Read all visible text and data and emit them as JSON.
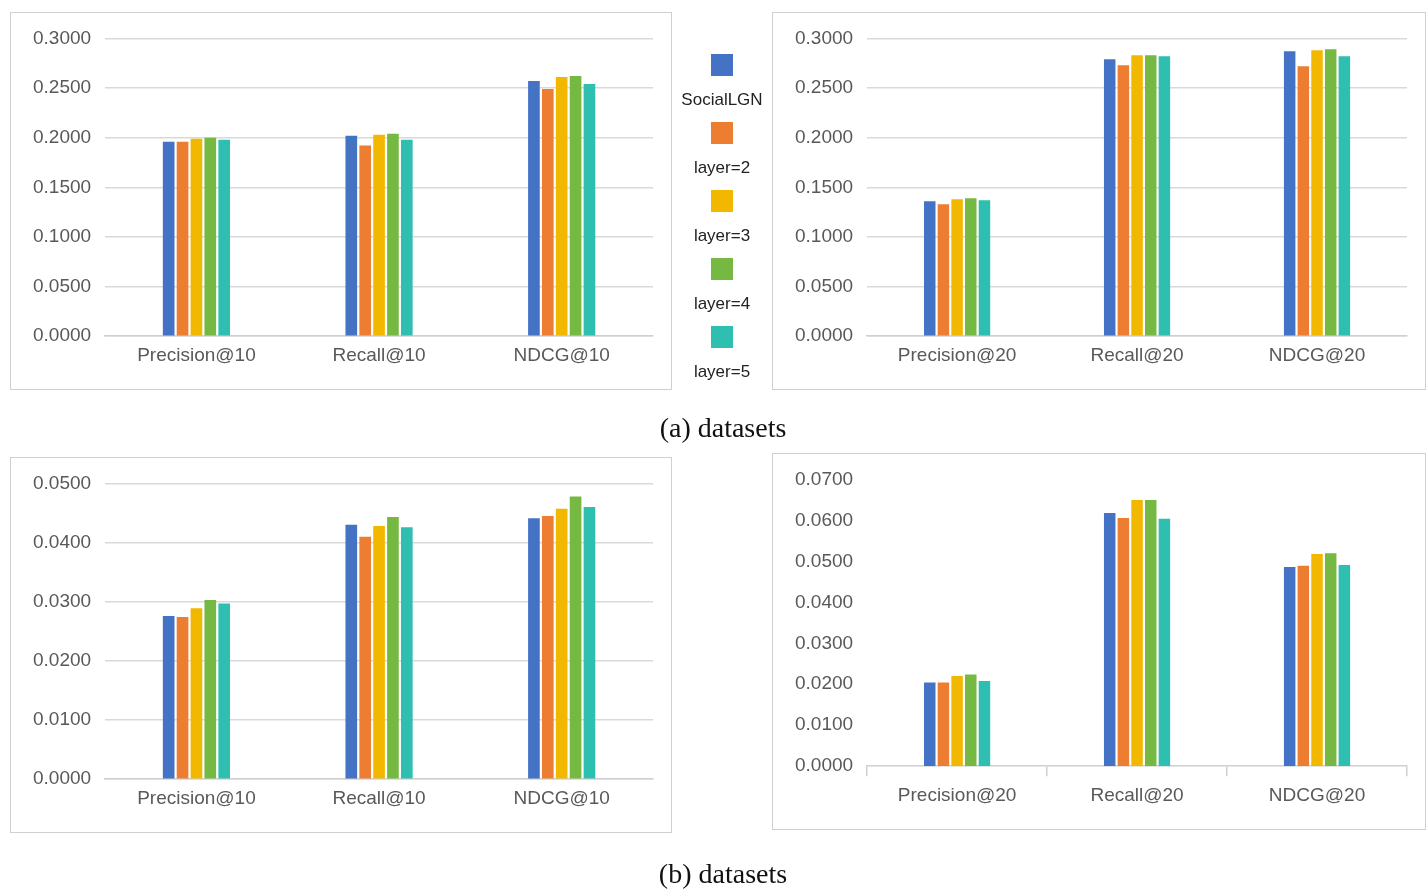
{
  "chart_data": [
    {
      "type": "bar",
      "categories": [
        "Precision@10",
        "Recall@10",
        "NDCG@10"
      ],
      "series": [
        {
          "name": "SocialLGN",
          "color": "#4472c4",
          "values": [
            0.196,
            0.202,
            0.257
          ]
        },
        {
          "name": "layer=2",
          "color": "#ed7d31",
          "values": [
            0.196,
            0.192,
            0.249
          ]
        },
        {
          "name": "layer=3",
          "color": "#f2b800",
          "values": [
            0.199,
            0.203,
            0.261
          ]
        },
        {
          "name": "layer=4",
          "color": "#76b942",
          "values": [
            0.2,
            0.204,
            0.262
          ]
        },
        {
          "name": "layer=5",
          "color": "#2fbfb0",
          "values": [
            0.198,
            0.198,
            0.254
          ]
        }
      ],
      "ylim": [
        0,
        0.3
      ],
      "yticks": [
        {
          "value": 0,
          "label": "0.0000"
        },
        {
          "value": 0.05,
          "label": "0.0500"
        },
        {
          "value": 0.1,
          "label": "0.1000"
        },
        {
          "value": 0.15,
          "label": "0.1500"
        },
        {
          "value": 0.2,
          "label": "0.2000"
        },
        {
          "value": 0.25,
          "label": "0.2500"
        },
        {
          "value": 0.3,
          "label": "0.3000"
        }
      ],
      "grid": "y",
      "legend": "right",
      "annotations": [
        "(a) datasets"
      ]
    },
    {
      "type": "bar",
      "categories": [
        "Precision@20",
        "Recall@20",
        "NDCG@20"
      ],
      "series": [
        {
          "color": "#4472c4",
          "values": [
            0.136,
            0.279,
            0.287
          ]
        },
        {
          "color": "#ed7d31",
          "values": [
            0.133,
            0.273,
            0.272
          ]
        },
        {
          "color": "#f2b800",
          "values": [
            0.138,
            0.283,
            0.288
          ]
        },
        {
          "color": "#76b942",
          "values": [
            0.139,
            0.283,
            0.289
          ]
        },
        {
          "color": "#2fbfb0",
          "values": [
            0.137,
            0.282,
            0.282
          ]
        }
      ],
      "ylim": [
        0,
        0.3
      ],
      "yticks": [
        {
          "value": 0,
          "label": "0.0000"
        },
        {
          "value": 0.05,
          "label": "0.0500"
        },
        {
          "value": 0.1,
          "label": "0.1000"
        },
        {
          "value": 0.15,
          "label": "0.1500"
        },
        {
          "value": 0.2,
          "label": "0.2000"
        },
        {
          "value": 0.25,
          "label": "0.2500"
        },
        {
          "value": 0.3,
          "label": "0.3000"
        }
      ],
      "grid": "y"
    },
    {
      "type": "bar",
      "categories": [
        "Precision@10",
        "Recall@10",
        "NDCG@10"
      ],
      "series": [
        {
          "color": "#4472c4",
          "values": [
            0.0276,
            0.043,
            0.0441
          ]
        },
        {
          "color": "#ed7d31",
          "values": [
            0.0274,
            0.041,
            0.0445
          ]
        },
        {
          "color": "#f2b800",
          "values": [
            0.0289,
            0.0428,
            0.0457
          ]
        },
        {
          "color": "#76b942",
          "values": [
            0.0303,
            0.0443,
            0.0478
          ]
        },
        {
          "color": "#2fbfb0",
          "values": [
            0.0297,
            0.0426,
            0.046
          ]
        }
      ],
      "ylim": [
        0,
        0.05
      ],
      "yticks": [
        {
          "value": 0,
          "label": "0.0000"
        },
        {
          "value": 0.01,
          "label": "0.0100"
        },
        {
          "value": 0.02,
          "label": "0.0200"
        },
        {
          "value": 0.03,
          "label": "0.0300"
        },
        {
          "value": 0.04,
          "label": "0.0400"
        },
        {
          "value": 0.05,
          "label": "0.0500"
        }
      ],
      "grid": "y"
    },
    {
      "type": "bar",
      "categories": [
        "Precision@20",
        "Recall@20",
        "NDCG@20"
      ],
      "series": [
        {
          "color": "#4472c4",
          "values": [
            0.0204,
            0.0618,
            0.0486
          ]
        },
        {
          "color": "#ed7d31",
          "values": [
            0.0204,
            0.0606,
            0.0489
          ]
        },
        {
          "color": "#f2b800",
          "values": [
            0.022,
            0.065,
            0.0518
          ]
        },
        {
          "color": "#76b942",
          "values": [
            0.0224,
            0.065,
            0.052
          ]
        },
        {
          "color": "#2fbfb0",
          "values": [
            0.0208,
            0.0604,
            0.0491
          ]
        }
      ],
      "ylim": [
        0,
        0.07
      ],
      "yticks": [
        {
          "value": 0,
          "label": "0.0000"
        },
        {
          "value": 0.01,
          "label": "0.0100"
        },
        {
          "value": 0.02,
          "label": "0.0200"
        },
        {
          "value": 0.03,
          "label": "0.0300"
        },
        {
          "value": 0.04,
          "label": "0.0400"
        },
        {
          "value": 0.05,
          "label": "0.0500"
        },
        {
          "value": 0.06,
          "label": "0.0600"
        },
        {
          "value": 0.07,
          "label": "0.0700"
        }
      ],
      "grid": false,
      "annotations": [
        "(b) datasets"
      ]
    }
  ]
}
